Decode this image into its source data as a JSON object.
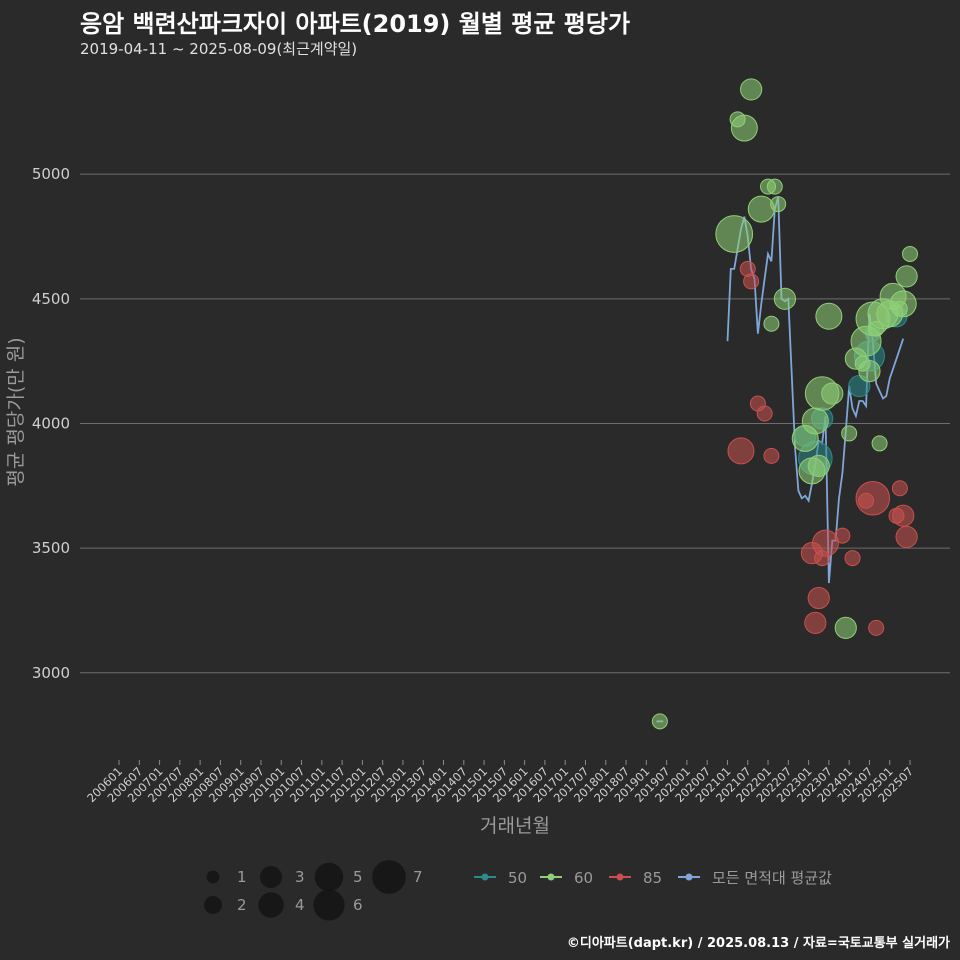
{
  "title": "응암 백련산파크자이 아파트(2019) 월별 평균 평당가",
  "subtitle": "2019-04-11 ~ 2025-08-09(최근계약일)",
  "credit": "©디아파트(dapt.kr) / 2025.08.13 / 자료=국토교통부 실거래가",
  "colors": {
    "background": "#2a2a2a",
    "grid": "#6e6e6e",
    "s50": "#2a8a8c",
    "s60": "#8fcf76",
    "s85": "#c9504f",
    "avg": "#7ea6d8"
  },
  "chart_data": {
    "type": "scatter",
    "xlabel": "거래년월",
    "ylabel": "평균 평당가(만 원)",
    "y_ticks": [
      3000,
      3500,
      4000,
      4500,
      5000
    ],
    "ylim": [
      2650,
      5450
    ],
    "x_range": [
      "2006-01",
      "2025-07"
    ],
    "x_ticks": [
      "200601",
      "200607",
      "200701",
      "200707",
      "200801",
      "200807",
      "200901",
      "200907",
      "201001",
      "201007",
      "201101",
      "201107",
      "201201",
      "201207",
      "201301",
      "201307",
      "201401",
      "201407",
      "201501",
      "201507",
      "201601",
      "201607",
      "201701",
      "201707",
      "201801",
      "201807",
      "201901",
      "201907",
      "202001",
      "202007",
      "202101",
      "202107",
      "202201",
      "202207",
      "202301",
      "202307",
      "202401",
      "202407",
      "202501",
      "202507"
    ],
    "size_legend": {
      "title": "",
      "values": [
        1,
        2,
        3,
        4,
        5,
        6,
        7
      ]
    },
    "legend": [
      "50",
      "60",
      "85",
      "모든 면적대 평균값"
    ],
    "grid": true,
    "series": [
      {
        "name": "50",
        "points": [
          {
            "x": "2022-12",
            "y": 3950,
            "n": 2
          },
          {
            "x": "2023-03",
            "y": 3860,
            "n": 5
          },
          {
            "x": "2023-05",
            "y": 4020,
            "n": 2
          },
          {
            "x": "2024-04",
            "y": 4150,
            "n": 2
          },
          {
            "x": "2024-07",
            "y": 4270,
            "n": 4
          },
          {
            "x": "2024-08",
            "y": 4360,
            "n": 1
          },
          {
            "x": "2025-03",
            "y": 4430,
            "n": 2
          }
        ]
      },
      {
        "name": "60",
        "points": [
          {
            "x": "2019-05",
            "y": 2805,
            "n": 1
          },
          {
            "x": "2021-03",
            "y": 4760,
            "n": 6
          },
          {
            "x": "2021-04",
            "y": 5220,
            "n": 1
          },
          {
            "x": "2021-06",
            "y": 5185,
            "n": 3
          },
          {
            "x": "2021-08",
            "y": 5340,
            "n": 2
          },
          {
            "x": "2021-11",
            "y": 4860,
            "n": 3
          },
          {
            "x": "2022-01",
            "y": 4950,
            "n": 1
          },
          {
            "x": "2022-02",
            "y": 4400,
            "n": 1
          },
          {
            "x": "2022-03",
            "y": 4950,
            "n": 1
          },
          {
            "x": "2022-04",
            "y": 4880,
            "n": 1
          },
          {
            "x": "2022-06",
            "y": 4500,
            "n": 2
          },
          {
            "x": "2022-12",
            "y": 3940,
            "n": 3
          },
          {
            "x": "2023-02",
            "y": 3810,
            "n": 3
          },
          {
            "x": "2023-03",
            "y": 4010,
            "n": 3
          },
          {
            "x": "2023-04",
            "y": 3830,
            "n": 2
          },
          {
            "x": "2023-05",
            "y": 4120,
            "n": 5
          },
          {
            "x": "2023-07",
            "y": 4430,
            "n": 3
          },
          {
            "x": "2023-08",
            "y": 4120,
            "n": 2
          },
          {
            "x": "2023-12",
            "y": 3180,
            "n": 2
          },
          {
            "x": "2024-01",
            "y": 3960,
            "n": 1
          },
          {
            "x": "2024-03",
            "y": 4260,
            "n": 2
          },
          {
            "x": "2024-05",
            "y": 4240,
            "n": 1
          },
          {
            "x": "2024-06",
            "y": 4330,
            "n": 4
          },
          {
            "x": "2024-07",
            "y": 4210,
            "n": 2
          },
          {
            "x": "2024-08",
            "y": 4420,
            "n": 5
          },
          {
            "x": "2024-09",
            "y": 4380,
            "n": 1
          },
          {
            "x": "2024-10",
            "y": 3920,
            "n": 1
          },
          {
            "x": "2024-11",
            "y": 4440,
            "n": 4
          },
          {
            "x": "2025-01",
            "y": 4440,
            "n": 3
          },
          {
            "x": "2025-02",
            "y": 4510,
            "n": 3
          },
          {
            "x": "2025-04",
            "y": 4460,
            "n": 1
          },
          {
            "x": "2025-05",
            "y": 4480,
            "n": 3
          },
          {
            "x": "2025-06",
            "y": 4590,
            "n": 2
          },
          {
            "x": "2025-07",
            "y": 4680,
            "n": 1
          }
        ]
      },
      {
        "name": "85",
        "points": [
          {
            "x": "2021-05",
            "y": 3890,
            "n": 3
          },
          {
            "x": "2021-07",
            "y": 4620,
            "n": 1
          },
          {
            "x": "2021-08",
            "y": 4570,
            "n": 1
          },
          {
            "x": "2021-10",
            "y": 4080,
            "n": 1
          },
          {
            "x": "2021-12",
            "y": 4040,
            "n": 1
          },
          {
            "x": "2022-02",
            "y": 3870,
            "n": 1
          },
          {
            "x": "2023-02",
            "y": 3480,
            "n": 2
          },
          {
            "x": "2023-03",
            "y": 3200,
            "n": 2
          },
          {
            "x": "2023-04",
            "y": 3300,
            "n": 2
          },
          {
            "x": "2023-05",
            "y": 3460,
            "n": 1
          },
          {
            "x": "2023-06",
            "y": 3520,
            "n": 3
          },
          {
            "x": "2023-11",
            "y": 3550,
            "n": 1
          },
          {
            "x": "2024-02",
            "y": 3460,
            "n": 1
          },
          {
            "x": "2024-06",
            "y": 3690,
            "n": 1
          },
          {
            "x": "2024-08",
            "y": 3700,
            "n": 5
          },
          {
            "x": "2024-09",
            "y": 3180,
            "n": 1
          },
          {
            "x": "2025-03",
            "y": 3630,
            "n": 1
          },
          {
            "x": "2025-04",
            "y": 3740,
            "n": 1
          },
          {
            "x": "2025-05",
            "y": 3630,
            "n": 2
          },
          {
            "x": "2025-06",
            "y": 3545,
            "n": 2
          }
        ]
      },
      {
        "name": "모든 면적대 평균값",
        "segments": [
          [
            {
              "x": "2019-04",
              "y": 2805
            },
            {
              "x": "2019-06",
              "y": 2805
            }
          ],
          [
            {
              "x": "2021-01",
              "y": 4330
            },
            {
              "x": "2021-02",
              "y": 4620
            },
            {
              "x": "2021-03",
              "y": 4620
            },
            {
              "x": "2021-04",
              "y": 4700
            },
            {
              "x": "2021-05",
              "y": 4780
            },
            {
              "x": "2021-06",
              "y": 4830
            },
            {
              "x": "2021-07",
              "y": 4750
            },
            {
              "x": "2021-08",
              "y": 4620
            },
            {
              "x": "2021-09",
              "y": 4580
            },
            {
              "x": "2021-10",
              "y": 4360
            },
            {
              "x": "2021-11",
              "y": 4480
            },
            {
              "x": "2021-12",
              "y": 4580
            },
            {
              "x": "2022-01",
              "y": 4680
            },
            {
              "x": "2022-02",
              "y": 4650
            },
            {
              "x": "2022-03",
              "y": 4860
            },
            {
              "x": "2022-04",
              "y": 4910
            },
            {
              "x": "2022-05",
              "y": 4500
            },
            {
              "x": "2022-06",
              "y": 4490
            },
            {
              "x": "2022-07",
              "y": 4500
            },
            {
              "x": "2022-08",
              "y": 4200
            },
            {
              "x": "2022-09",
              "y": 3900
            },
            {
              "x": "2022-10",
              "y": 3730
            },
            {
              "x": "2022-11",
              "y": 3700
            },
            {
              "x": "2022-12",
              "y": 3710
            },
            {
              "x": "2023-01",
              "y": 3690
            },
            {
              "x": "2023-02",
              "y": 3760
            },
            {
              "x": "2023-03",
              "y": 3840
            },
            {
              "x": "2023-04",
              "y": 3930
            },
            {
              "x": "2023-05",
              "y": 3920
            },
            {
              "x": "2023-06",
              "y": 4030
            },
            {
              "x": "2023-07",
              "y": 3360
            },
            {
              "x": "2023-08",
              "y": 3530
            },
            {
              "x": "2023-09",
              "y": 3530
            },
            {
              "x": "2023-10",
              "y": 3700
            },
            {
              "x": "2023-11",
              "y": 3800
            },
            {
              "x": "2023-12",
              "y": 3970
            },
            {
              "x": "2024-01",
              "y": 4150
            },
            {
              "x": "2024-02",
              "y": 4060
            },
            {
              "x": "2024-03",
              "y": 4030
            },
            {
              "x": "2024-04",
              "y": 4090
            },
            {
              "x": "2024-05",
              "y": 4090
            },
            {
              "x": "2024-06",
              "y": 4070
            },
            {
              "x": "2024-07",
              "y": 4440
            },
            {
              "x": "2024-08",
              "y": 4330
            },
            {
              "x": "2024-09",
              "y": 4160
            },
            {
              "x": "2024-10",
              "y": 4130
            },
            {
              "x": "2024-11",
              "y": 4100
            },
            {
              "x": "2024-12",
              "y": 4110
            },
            {
              "x": "2025-01",
              "y": 4180
            },
            {
              "x": "2025-03",
              "y": 4260
            },
            {
              "x": "2025-05",
              "y": 4340
            }
          ]
        ]
      }
    ]
  }
}
